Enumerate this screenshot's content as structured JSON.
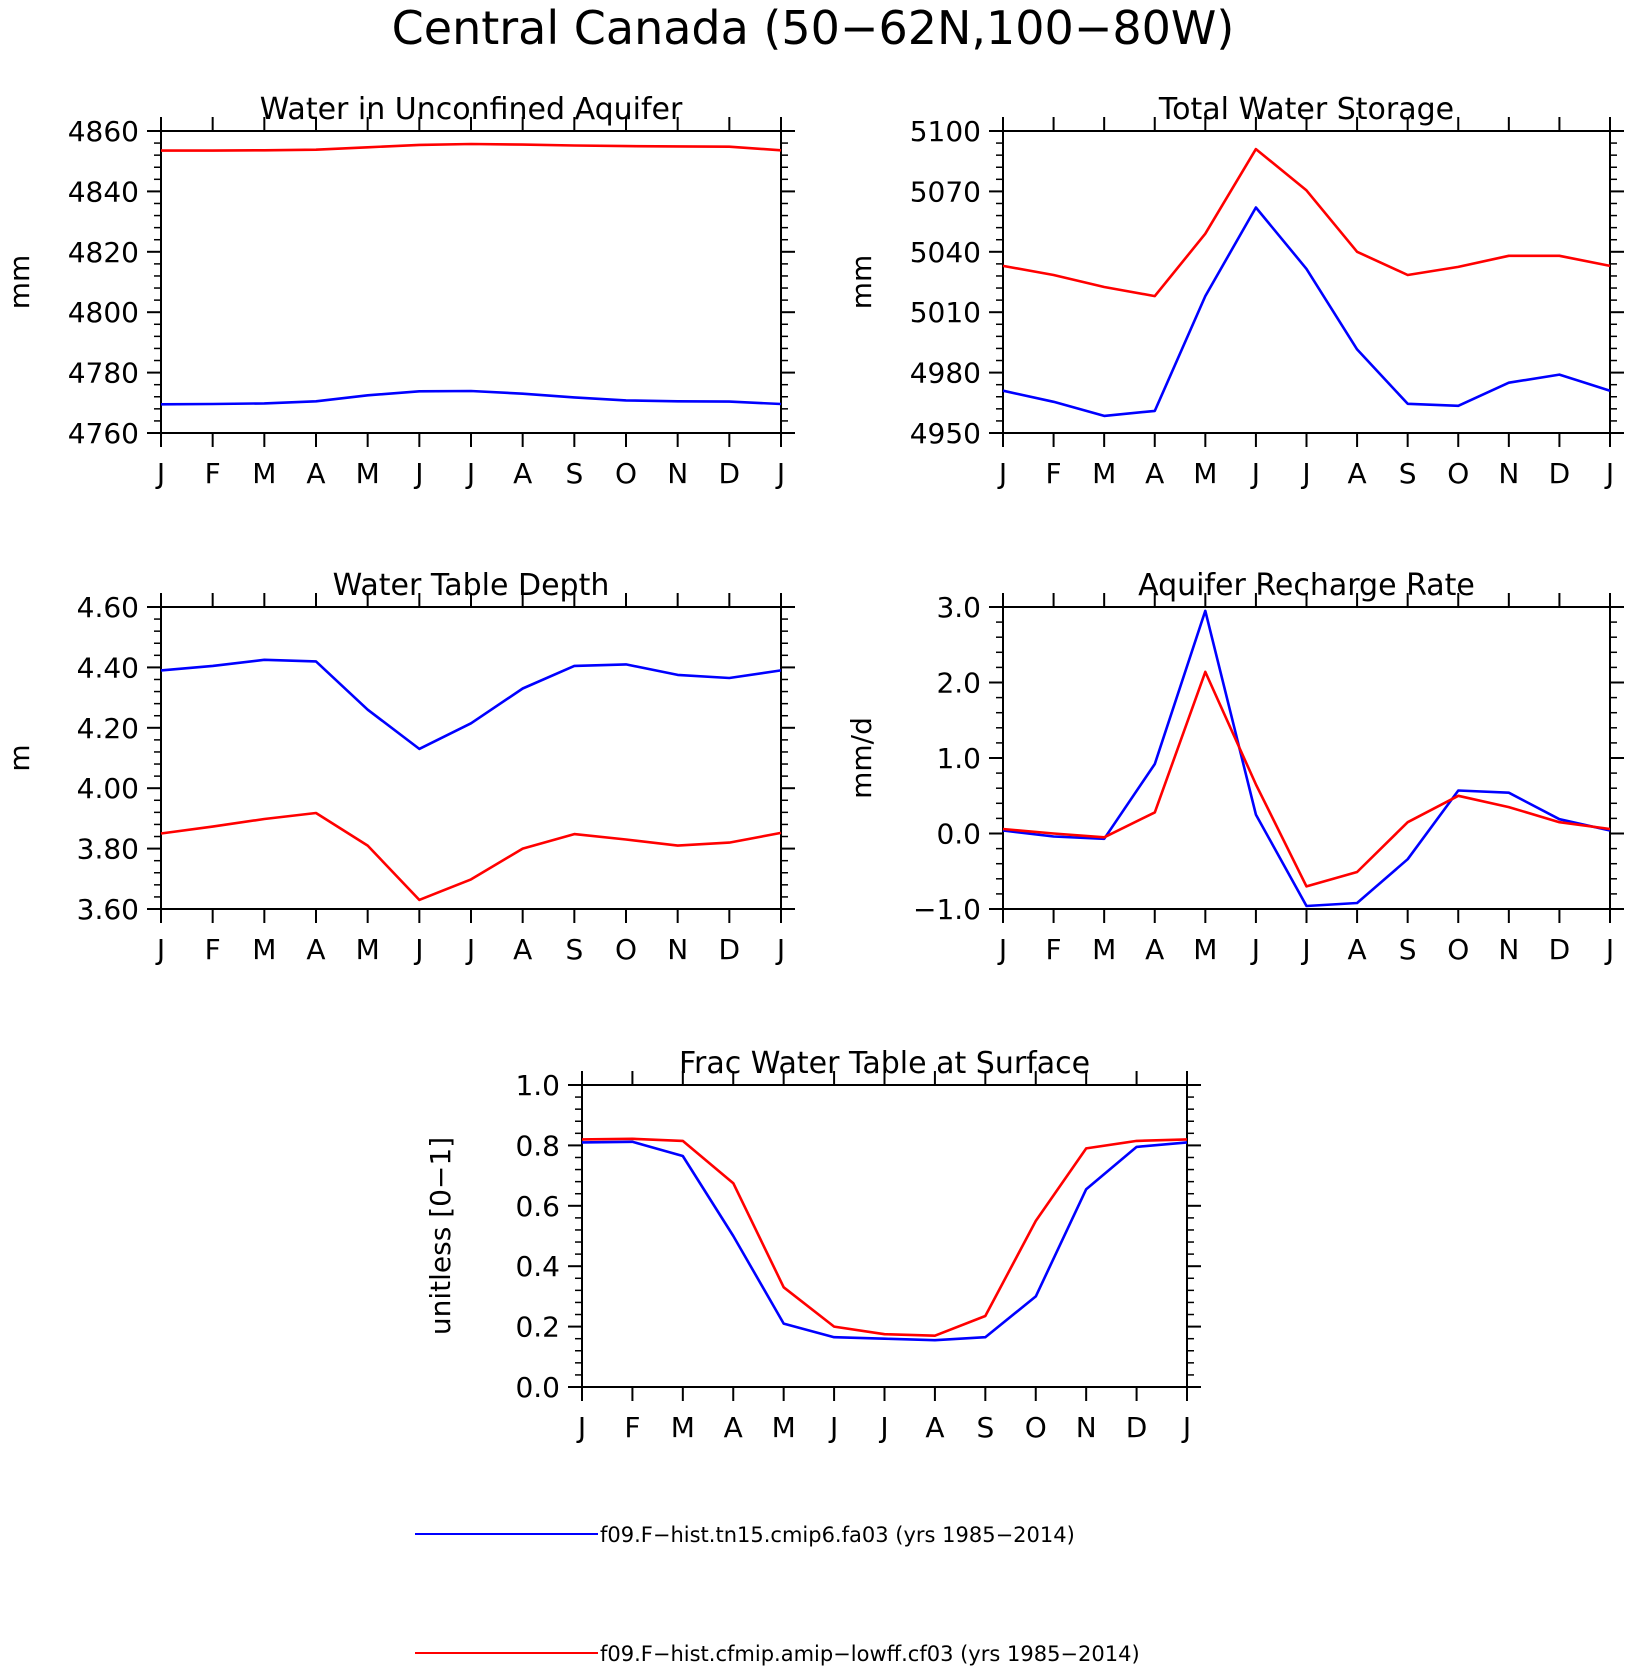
{
  "figure": {
    "title": "Central Canada (50−62N,100−80W)"
  },
  "colors": {
    "series_1": "#0000ff",
    "series_2": "#ff0000",
    "axis": "#000000"
  },
  "legend": {
    "placement": "bottom",
    "entries": [
      {
        "label": "f09.F−hist.tn15.cmip6.fa03 (yrs 1985−2014)",
        "color": "#0000ff"
      },
      {
        "label": "f09.F−hist.cfmip.amip−lowff.cf03 (yrs 1985−2014)",
        "color": "#ff0000"
      }
    ]
  },
  "chart_data": [
    {
      "type": "line",
      "title": "Water in Unconfined Aquifer",
      "ylabel": "mm",
      "xlabel": "",
      "categories": [
        "J",
        "F",
        "M",
        "A",
        "M",
        "J",
        "J",
        "A",
        "S",
        "O",
        "N",
        "D",
        "J"
      ],
      "ylim": [
        4760,
        4860
      ],
      "yticks": [
        "4760",
        "4780",
        "4800",
        "4820",
        "4840",
        "4860"
      ],
      "series": [
        {
          "color": "#0000ff",
          "values": [
            4769.5,
            4769.6,
            4769.8,
            4770.5,
            4772.5,
            4773.8,
            4773.9,
            4773.0,
            4771.8,
            4770.8,
            4770.5,
            4770.4,
            4769.6
          ]
        },
        {
          "color": "#ff0000",
          "values": [
            4853.5,
            4853.5,
            4853.6,
            4853.8,
            4854.6,
            4855.4,
            4855.7,
            4855.5,
            4855.2,
            4855.0,
            4854.9,
            4854.8,
            4853.6
          ]
        }
      ]
    },
    {
      "type": "line",
      "title": "Total Water Storage",
      "ylabel": "mm",
      "xlabel": "",
      "categories": [
        "J",
        "F",
        "M",
        "A",
        "M",
        "J",
        "J",
        "A",
        "S",
        "O",
        "N",
        "D",
        "J"
      ],
      "ylim": [
        4950,
        5100
      ],
      "yticks": [
        "4950",
        "4980",
        "5010",
        "5040",
        "5070",
        "5100"
      ],
      "series": [
        {
          "color": "#0000ff",
          "values": [
            4971,
            4965.5,
            4958.5,
            4961,
            5018,
            5062,
            5031.5,
            4991.5,
            4964.5,
            4963.5,
            4975,
            4979,
            4971
          ]
        },
        {
          "color": "#ff0000",
          "values": [
            5033,
            5028.5,
            5022.5,
            5018,
            5049,
            5091,
            5070.5,
            5040,
            5028.5,
            5032.5,
            5038,
            5038,
            5033
          ]
        }
      ]
    },
    {
      "type": "line",
      "title": "Water Table Depth",
      "ylabel": "m",
      "xlabel": "",
      "categories": [
        "J",
        "F",
        "M",
        "A",
        "M",
        "J",
        "J",
        "A",
        "S",
        "O",
        "N",
        "D",
        "J"
      ],
      "ylim": [
        3.6,
        4.6
      ],
      "yticks": [
        "3.60",
        "3.80",
        "4.00",
        "4.20",
        "4.40",
        "4.60"
      ],
      "series": [
        {
          "color": "#0000ff",
          "values": [
            4.39,
            4.405,
            4.425,
            4.42,
            4.26,
            4.13,
            4.215,
            4.33,
            4.405,
            4.41,
            4.375,
            4.365,
            4.39
          ]
        },
        {
          "color": "#ff0000",
          "values": [
            3.85,
            3.873,
            3.898,
            3.918,
            3.81,
            3.63,
            3.698,
            3.8,
            3.848,
            3.83,
            3.81,
            3.82,
            3.852
          ]
        }
      ]
    },
    {
      "type": "line",
      "title": "Aquifer Recharge Rate",
      "ylabel": "mm/d",
      "xlabel": "",
      "categories": [
        "J",
        "F",
        "M",
        "A",
        "M",
        "J",
        "J",
        "A",
        "S",
        "O",
        "N",
        "D",
        "J"
      ],
      "ylim": [
        -1.0,
        3.0
      ],
      "yticks": [
        "−1.0",
        "0.0",
        "1.0",
        "2.0",
        "3.0"
      ],
      "series": [
        {
          "color": "#0000ff",
          "values": [
            0.04,
            -0.04,
            -0.07,
            0.92,
            2.95,
            0.25,
            -0.96,
            -0.92,
            -0.34,
            0.57,
            0.54,
            0.19,
            0.04
          ]
        },
        {
          "color": "#ff0000",
          "values": [
            0.06,
            0.0,
            -0.05,
            0.28,
            2.14,
            0.65,
            -0.7,
            -0.51,
            0.15,
            0.5,
            0.35,
            0.15,
            0.06
          ]
        }
      ]
    },
    {
      "type": "line",
      "title": "Frac Water Table at Surface",
      "ylabel": "unitless [0−1]",
      "xlabel": "",
      "categories": [
        "J",
        "F",
        "M",
        "A",
        "M",
        "J",
        "J",
        "A",
        "S",
        "O",
        "N",
        "D",
        "J"
      ],
      "ylim": [
        0.0,
        1.0
      ],
      "yticks": [
        "0.0",
        "0.2",
        "0.4",
        "0.6",
        "0.8",
        "1.0"
      ],
      "series": [
        {
          "color": "#0000ff",
          "values": [
            0.81,
            0.812,
            0.765,
            0.5,
            0.21,
            0.165,
            0.16,
            0.155,
            0.165,
            0.3,
            0.655,
            0.795,
            0.81
          ]
        },
        {
          "color": "#ff0000",
          "values": [
            0.82,
            0.822,
            0.815,
            0.675,
            0.33,
            0.2,
            0.175,
            0.17,
            0.235,
            0.55,
            0.79,
            0.815,
            0.82
          ]
        }
      ]
    }
  ]
}
